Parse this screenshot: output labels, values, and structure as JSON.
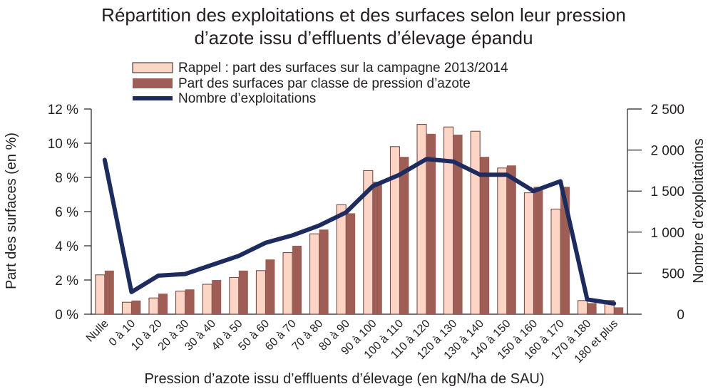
{
  "chart_data": {
    "type": "bar",
    "title_line1": "Répartition des exploitations et des surfaces selon leur pression",
    "title_line2": "d’azote issu d’effluents d’élevage épandu",
    "xlabel": "Pression d’azote issu d’effluents d’élevage (en kgN/ha de SAU)",
    "ylabel_left": "Part des surfaces (en %)",
    "ylabel_right": "Nombre d’exploitations",
    "ylim_left": [
      0,
      12
    ],
    "ylim_right": [
      0,
      2500
    ],
    "yticks_left": [
      "0 %",
      "2 %",
      "4 %",
      "6 %",
      "8 %",
      "10 %",
      "12 %"
    ],
    "yticks_right": [
      "0",
      "500",
      "1 000",
      "1 500",
      "2 000",
      "2 500"
    ],
    "categories": [
      "Nulle",
      "0 à 10",
      "10 à 20",
      "20 à 30",
      "30 à 40",
      "40 à 50",
      "50 à 60",
      "60 à 70",
      "70 à 80",
      "80 à 90",
      "90 à 100",
      "100 à 110",
      "110 à 120",
      "120 à 130",
      "130 à 140",
      "140 à 150",
      "150 à 160",
      "160 à 170",
      "170 à 180",
      "180 et plus"
    ],
    "series": [
      {
        "name": "Rappel : part des surfaces sur la campagne 2013/2014",
        "kind": "bar",
        "axis": "left",
        "color": "#fcd5c6",
        "values": [
          2.3,
          0.7,
          0.95,
          1.35,
          1.75,
          2.15,
          2.55,
          3.6,
          4.7,
          6.4,
          8.4,
          9.8,
          11.1,
          10.95,
          10.7,
          8.55,
          7.1,
          6.15,
          0.8,
          0.8
        ]
      },
      {
        "name": "Part des surfaces par classe de pression d’azote",
        "kind": "bar",
        "axis": "left",
        "color": "#9e5e55",
        "values": [
          2.55,
          0.8,
          1.2,
          1.45,
          2.0,
          2.55,
          3.2,
          4.0,
          4.95,
          5.9,
          7.75,
          9.2,
          10.55,
          10.5,
          9.2,
          8.7,
          7.45,
          7.45,
          0.65,
          0.4
        ]
      },
      {
        "name": "Nombre d’exploitations",
        "kind": "line",
        "axis": "right",
        "color": "#1e2b5e",
        "values": [
          1880,
          270,
          470,
          490,
          600,
          710,
          870,
          960,
          1080,
          1240,
          1560,
          1700,
          1890,
          1860,
          1700,
          1700,
          1500,
          1620,
          180,
          130
        ]
      }
    ],
    "grid": false,
    "legend_position": "top-center"
  }
}
